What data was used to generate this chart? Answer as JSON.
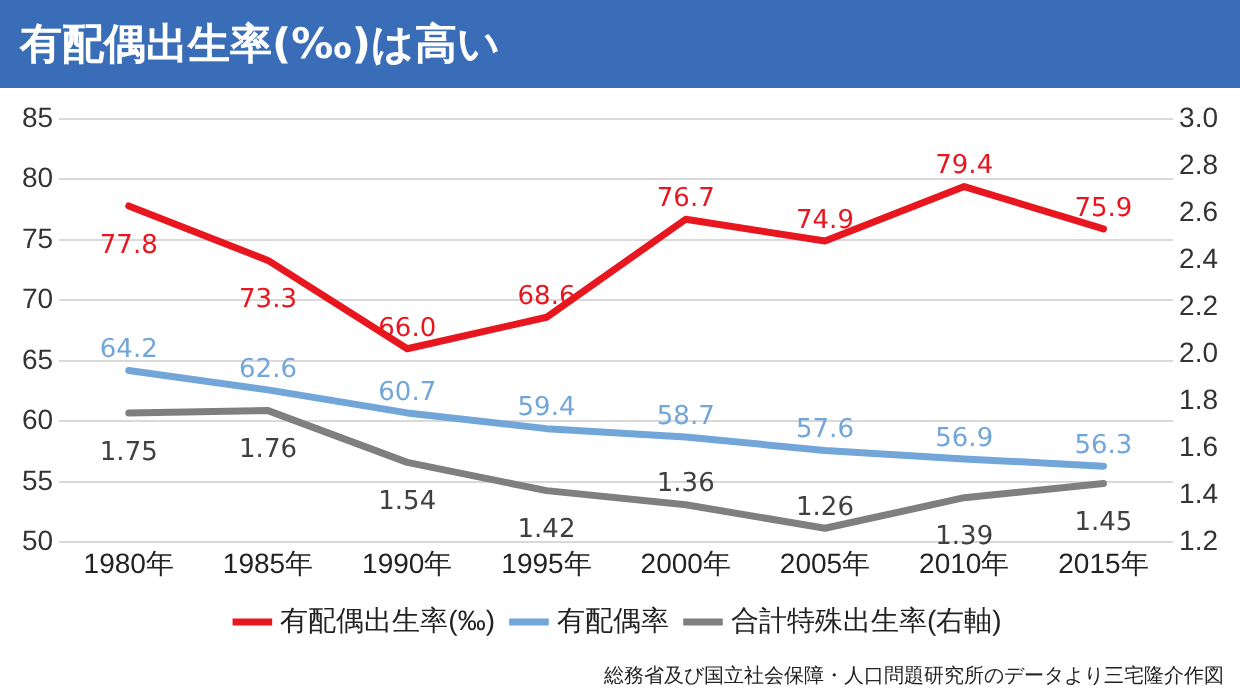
{
  "chart_data": {
    "type": "line",
    "title": "有配偶出生率(‰)は高い",
    "categories": [
      "1980年",
      "1985年",
      "1990年",
      "1995年",
      "2000年",
      "2005年",
      "2010年",
      "2015年"
    ],
    "series": [
      {
        "name": "有配偶出生率(‰)",
        "color": "#e8161e",
        "values": [
          77.8,
          73.3,
          66.0,
          68.6,
          76.7,
          74.9,
          79.4,
          75.9
        ],
        "value_labels": [
          "77.8",
          "73.3",
          "66.0",
          "68.6",
          "76.7",
          "74.9",
          "79.4",
          "75.9"
        ]
      },
      {
        "name": "有配偶率",
        "color": "#72a6d9",
        "values": [
          64.2,
          62.6,
          60.7,
          59.4,
          58.7,
          57.6,
          56.9,
          56.3
        ],
        "value_labels": [
          "64.2",
          "62.6",
          "60.7",
          "59.4",
          "58.7",
          "57.6",
          "56.9",
          "56.3"
        ]
      },
      {
        "name": "合計特殊出生率(右軸)",
        "color": "#7f7f7f",
        "axis": "y2",
        "values": [
          1.75,
          1.76,
          1.54,
          1.42,
          1.36,
          1.26,
          1.39,
          1.45
        ],
        "value_labels": [
          "1.75",
          "1.76",
          "1.54",
          "1.42",
          "1.36",
          "1.26",
          "1.39",
          "1.45"
        ]
      }
    ],
    "ylim": [
      50,
      85
    ],
    "yticks": [
      50,
      55,
      60,
      65,
      70,
      75,
      80,
      85
    ],
    "y2lim": [
      1.2,
      3.0
    ],
    "y2ticks": [
      {
        "value": 1.2,
        "label": "1.2"
      },
      {
        "value": 1.4,
        "label": "1.4"
      },
      {
        "value": 1.6,
        "label": "1.6"
      },
      {
        "value": 1.8,
        "label": "1.8"
      },
      {
        "value": 2.0,
        "label": "2.0"
      },
      {
        "value": 2.2,
        "label": "2.2"
      },
      {
        "value": 2.4,
        "label": "2.4"
      },
      {
        "value": 2.6,
        "label": "2.6"
      },
      {
        "value": 2.8,
        "label": "2.8"
      },
      {
        "value": 3.0,
        "label": "3.0"
      }
    ],
    "grid": "y",
    "legend": "bottom",
    "marker": "none",
    "line_style": "solid",
    "annotations": [
      "総務省及び国立社会保障・人口問題研究所のデータより三宅隆介作図"
    ]
  }
}
